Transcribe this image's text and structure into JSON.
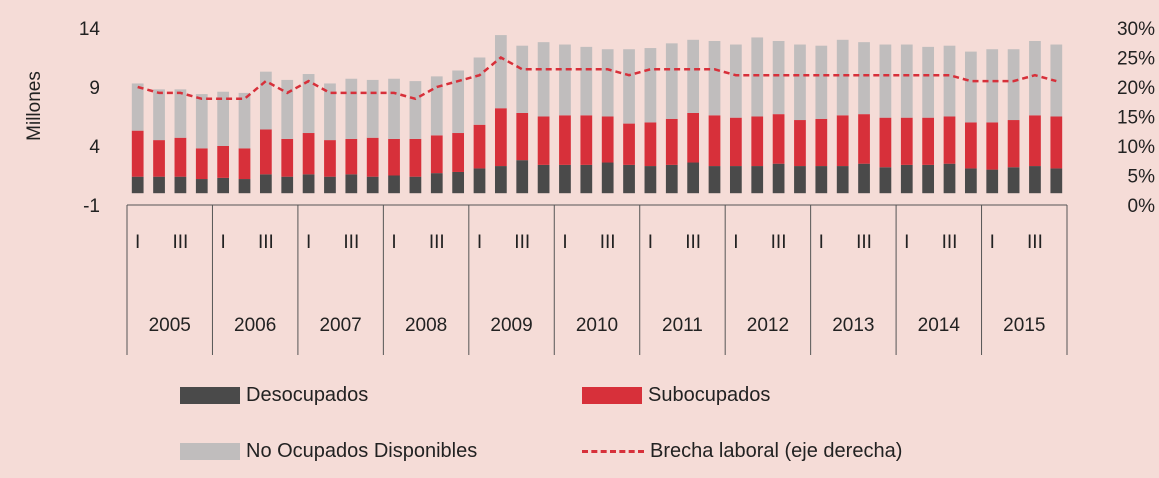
{
  "chart_data": {
    "type": "bar",
    "stacked": true,
    "ylabel": "Millones",
    "ylim": [
      -1,
      14
    ],
    "yticks": [
      -1,
      4,
      9,
      14
    ],
    "y2lim": [
      0,
      0.3
    ],
    "y2ticks": [
      "0%",
      "5%",
      "10%",
      "15%",
      "20%",
      "25%",
      "30%"
    ],
    "quarter_labels": [
      "I",
      "III"
    ],
    "years": [
      "2005",
      "2006",
      "2007",
      "2008",
      "2009",
      "2010",
      "2011",
      "2012",
      "2013",
      "2014",
      "2015"
    ],
    "series": [
      {
        "name": "Desocupados",
        "color": "#4a4a4a",
        "values": [
          1.4,
          1.4,
          1.4,
          1.2,
          1.3,
          1.2,
          1.6,
          1.4,
          1.6,
          1.4,
          1.6,
          1.4,
          1.5,
          1.4,
          1.7,
          1.8,
          2.1,
          2.3,
          2.8,
          2.4,
          2.4,
          2.4,
          2.6,
          2.4,
          2.3,
          2.4,
          2.6,
          2.3,
          2.3,
          2.3,
          2.5,
          2.3,
          2.3,
          2.3,
          2.5,
          2.2,
          2.4,
          2.4,
          2.5,
          2.1,
          2.0,
          2.2,
          2.3,
          2.1
        ]
      },
      {
        "name": "Subocupados",
        "color": "#d7303a",
        "values": [
          3.9,
          3.1,
          3.3,
          2.6,
          2.7,
          2.6,
          3.8,
          3.2,
          3.5,
          3.1,
          3.0,
          3.3,
          3.1,
          3.2,
          3.2,
          3.3,
          3.7,
          4.9,
          4.0,
          4.1,
          4.2,
          4.2,
          3.9,
          3.5,
          3.7,
          3.9,
          4.2,
          4.3,
          4.1,
          4.2,
          4.2,
          3.9,
          4.0,
          4.3,
          4.2,
          4.2,
          4.0,
          4.0,
          4.0,
          3.9,
          4.0,
          4.0,
          4.3,
          4.4
        ]
      },
      {
        "name": "No Ocupados Disponibles",
        "color": "#c0bdbd",
        "values": [
          4.0,
          4.3,
          4.1,
          4.6,
          4.6,
          4.7,
          4.9,
          5.0,
          5.0,
          4.8,
          5.1,
          4.9,
          5.1,
          4.9,
          5.0,
          5.3,
          5.7,
          6.2,
          5.7,
          6.3,
          6.0,
          5.8,
          5.7,
          6.3,
          6.3,
          6.4,
          6.2,
          6.3,
          6.2,
          6.7,
          6.2,
          6.4,
          6.2,
          6.4,
          6.1,
          6.2,
          6.2,
          6.0,
          6.0,
          6.0,
          6.2,
          6.0,
          6.3,
          6.1
        ]
      },
      {
        "name": "Brecha laboral (eje derecha)",
        "color": "#d7303a",
        "axis": "right",
        "values": [
          0.2,
          0.19,
          0.19,
          0.18,
          0.18,
          0.18,
          0.21,
          0.19,
          0.21,
          0.19,
          0.19,
          0.19,
          0.19,
          0.18,
          0.2,
          0.21,
          0.22,
          0.25,
          0.23,
          0.23,
          0.23,
          0.23,
          0.23,
          0.22,
          0.23,
          0.23,
          0.23,
          0.23,
          0.22,
          0.22,
          0.22,
          0.22,
          0.22,
          0.22,
          0.22,
          0.22,
          0.22,
          0.22,
          0.22,
          0.21,
          0.21,
          0.21,
          0.22,
          0.21
        ]
      }
    ]
  },
  "legend": {
    "desocupados": "Desocupados",
    "subocupados": "Subocupados",
    "no_ocupados": "No Ocupados Disponibles",
    "brecha": "Brecha laboral (eje derecha)"
  }
}
